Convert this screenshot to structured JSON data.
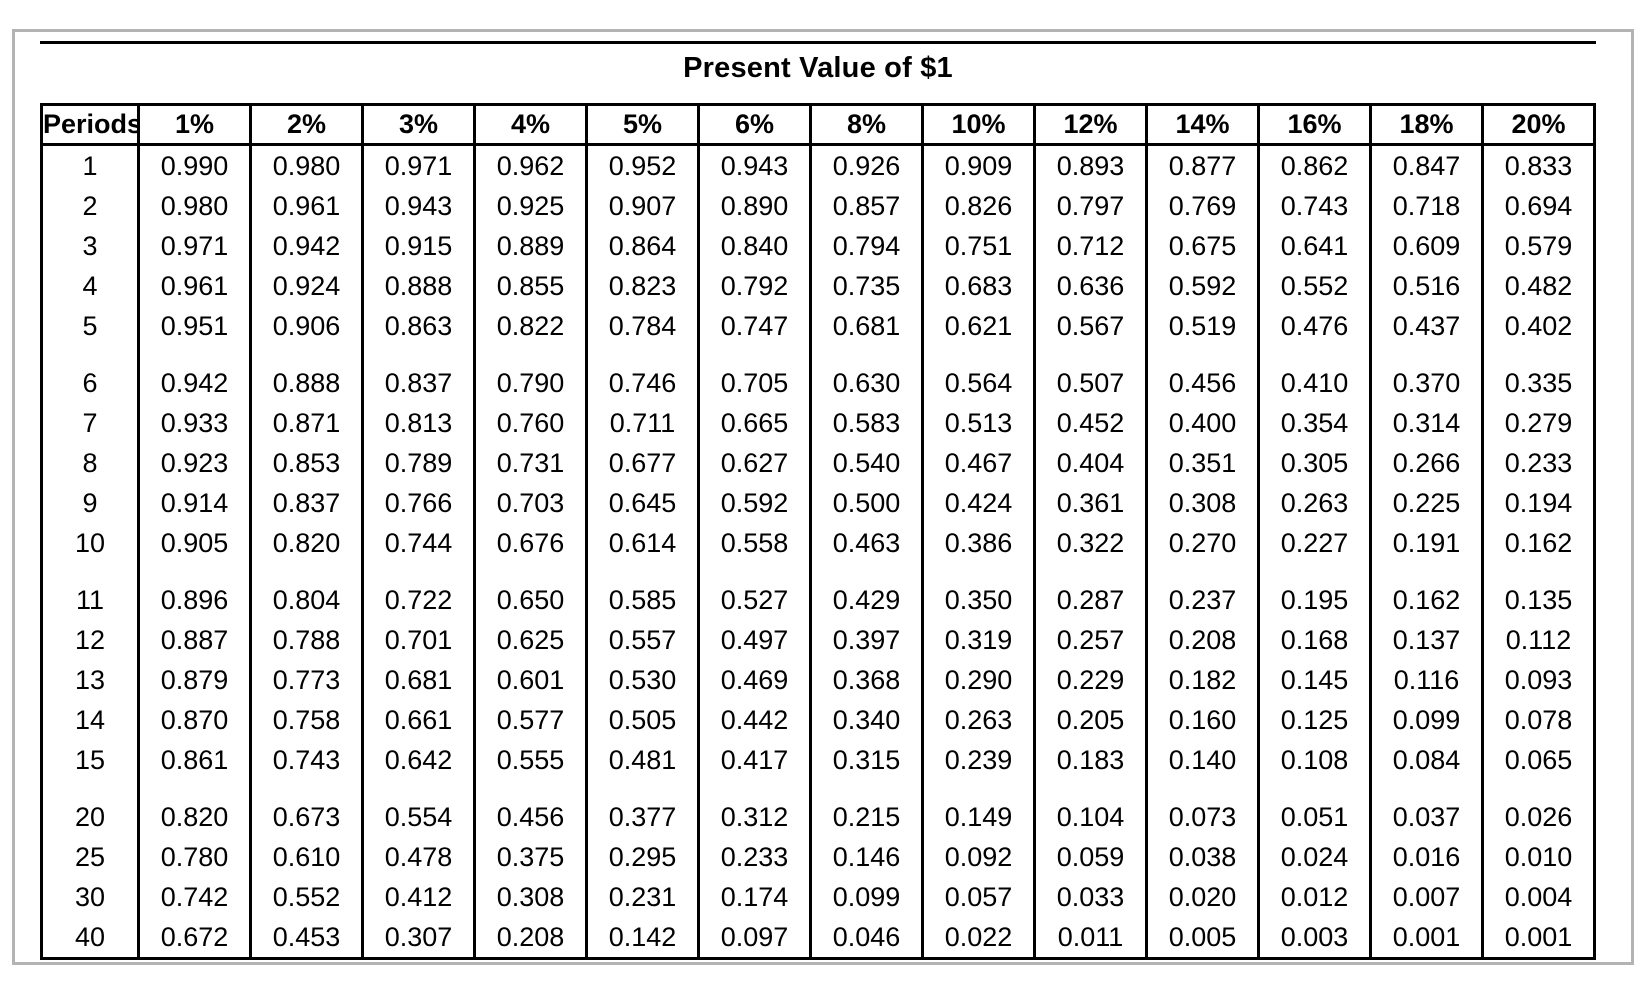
{
  "title": "Present Value of $1",
  "colors": {
    "frame_border": "#b3b3b3",
    "table_border": "#000000",
    "text": "#000000",
    "background": "#ffffff"
  },
  "table": {
    "columns": [
      "Periods",
      "1%",
      "2%",
      "3%",
      "4%",
      "5%",
      "6%",
      "8%",
      "10%",
      "12%",
      "14%",
      "16%",
      "18%",
      "20%"
    ],
    "groups": [
      [
        [
          "1",
          "0.990",
          "0.980",
          "0.971",
          "0.962",
          "0.952",
          "0.943",
          "0.926",
          "0.909",
          "0.893",
          "0.877",
          "0.862",
          "0.847",
          "0.833"
        ],
        [
          "2",
          "0.980",
          "0.961",
          "0.943",
          "0.925",
          "0.907",
          "0.890",
          "0.857",
          "0.826",
          "0.797",
          "0.769",
          "0.743",
          "0.718",
          "0.694"
        ],
        [
          "3",
          "0.971",
          "0.942",
          "0.915",
          "0.889",
          "0.864",
          "0.840",
          "0.794",
          "0.751",
          "0.712",
          "0.675",
          "0.641",
          "0.609",
          "0.579"
        ],
        [
          "4",
          "0.961",
          "0.924",
          "0.888",
          "0.855",
          "0.823",
          "0.792",
          "0.735",
          "0.683",
          "0.636",
          "0.592",
          "0.552",
          "0.516",
          "0.482"
        ],
        [
          "5",
          "0.951",
          "0.906",
          "0.863",
          "0.822",
          "0.784",
          "0.747",
          "0.681",
          "0.621",
          "0.567",
          "0.519",
          "0.476",
          "0.437",
          "0.402"
        ]
      ],
      [
        [
          "6",
          "0.942",
          "0.888",
          "0.837",
          "0.790",
          "0.746",
          "0.705",
          "0.630",
          "0.564",
          "0.507",
          "0.456",
          "0.410",
          "0.370",
          "0.335"
        ],
        [
          "7",
          "0.933",
          "0.871",
          "0.813",
          "0.760",
          "0.711",
          "0.665",
          "0.583",
          "0.513",
          "0.452",
          "0.400",
          "0.354",
          "0.314",
          "0.279"
        ],
        [
          "8",
          "0.923",
          "0.853",
          "0.789",
          "0.731",
          "0.677",
          "0.627",
          "0.540",
          "0.467",
          "0.404",
          "0.351",
          "0.305",
          "0.266",
          "0.233"
        ],
        [
          "9",
          "0.914",
          "0.837",
          "0.766",
          "0.703",
          "0.645",
          "0.592",
          "0.500",
          "0.424",
          "0.361",
          "0.308",
          "0.263",
          "0.225",
          "0.194"
        ],
        [
          "10",
          "0.905",
          "0.820",
          "0.744",
          "0.676",
          "0.614",
          "0.558",
          "0.463",
          "0.386",
          "0.322",
          "0.270",
          "0.227",
          "0.191",
          "0.162"
        ]
      ],
      [
        [
          "11",
          "0.896",
          "0.804",
          "0.722",
          "0.650",
          "0.585",
          "0.527",
          "0.429",
          "0.350",
          "0.287",
          "0.237",
          "0.195",
          "0.162",
          "0.135"
        ],
        [
          "12",
          "0.887",
          "0.788",
          "0.701",
          "0.625",
          "0.557",
          "0.497",
          "0.397",
          "0.319",
          "0.257",
          "0.208",
          "0.168",
          "0.137",
          "0.112"
        ],
        [
          "13",
          "0.879",
          "0.773",
          "0.681",
          "0.601",
          "0.530",
          "0.469",
          "0.368",
          "0.290",
          "0.229",
          "0.182",
          "0.145",
          "0.116",
          "0.093"
        ],
        [
          "14",
          "0.870",
          "0.758",
          "0.661",
          "0.577",
          "0.505",
          "0.442",
          "0.340",
          "0.263",
          "0.205",
          "0.160",
          "0.125",
          "0.099",
          "0.078"
        ],
        [
          "15",
          "0.861",
          "0.743",
          "0.642",
          "0.555",
          "0.481",
          "0.417",
          "0.315",
          "0.239",
          "0.183",
          "0.140",
          "0.108",
          "0.084",
          "0.065"
        ]
      ],
      [
        [
          "20",
          "0.820",
          "0.673",
          "0.554",
          "0.456",
          "0.377",
          "0.312",
          "0.215",
          "0.149",
          "0.104",
          "0.073",
          "0.051",
          "0.037",
          "0.026"
        ],
        [
          "25",
          "0.780",
          "0.610",
          "0.478",
          "0.375",
          "0.295",
          "0.233",
          "0.146",
          "0.092",
          "0.059",
          "0.038",
          "0.024",
          "0.016",
          "0.010"
        ],
        [
          "30",
          "0.742",
          "0.552",
          "0.412",
          "0.308",
          "0.231",
          "0.174",
          "0.099",
          "0.057",
          "0.033",
          "0.020",
          "0.012",
          "0.007",
          "0.004"
        ],
        [
          "40",
          "0.672",
          "0.453",
          "0.307",
          "0.208",
          "0.142",
          "0.097",
          "0.046",
          "0.022",
          "0.011",
          "0.005",
          "0.003",
          "0.001",
          "0.001"
        ]
      ]
    ]
  }
}
